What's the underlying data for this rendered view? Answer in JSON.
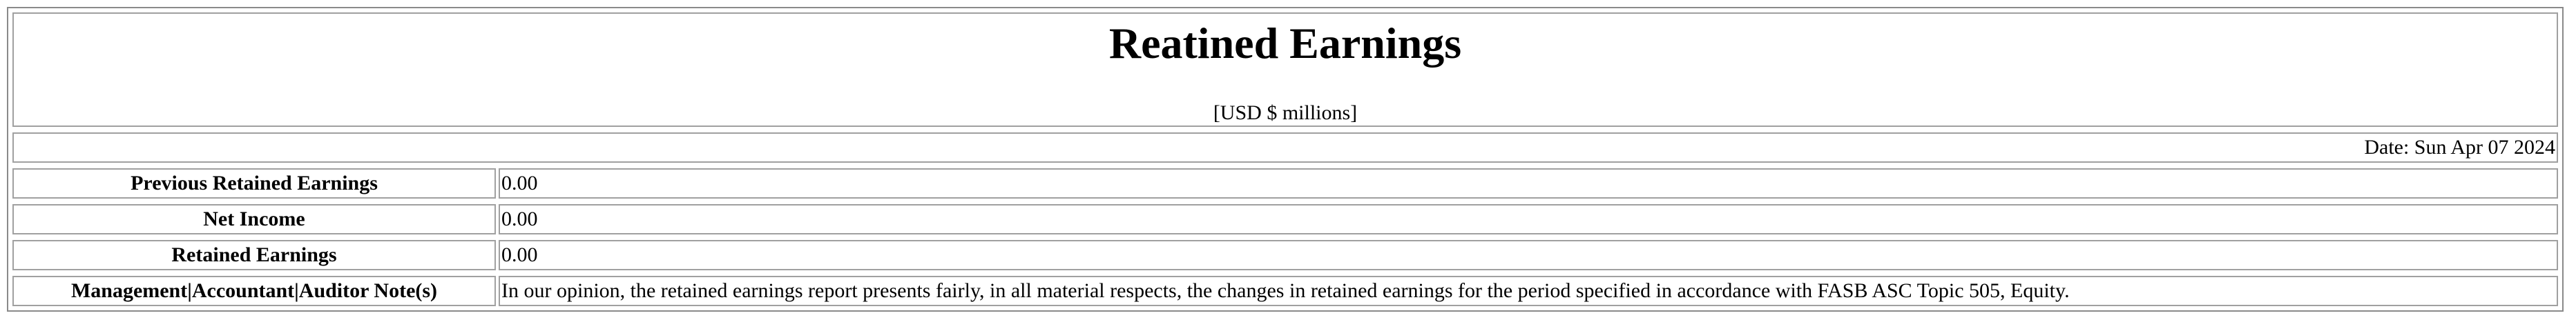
{
  "report": {
    "title": "Reatined Earnings",
    "units": "[USD $ millions]",
    "date": "Date: Sun Apr 07 2024"
  },
  "rows": [
    {
      "label": "Previous Retained Earnings",
      "value": "0.00"
    },
    {
      "label": "Net Income",
      "value": "0.00"
    },
    {
      "label": "Retained Earnings",
      "value": "0.00"
    },
    {
      "label": "Management|Accountant|Auditor Note(s)",
      "value": "In our opinion, the retained earnings report presents fairly, in all material respects, the changes in retained earnings for the period specified in accordance with FASB ASC Topic 505, Equity."
    }
  ]
}
